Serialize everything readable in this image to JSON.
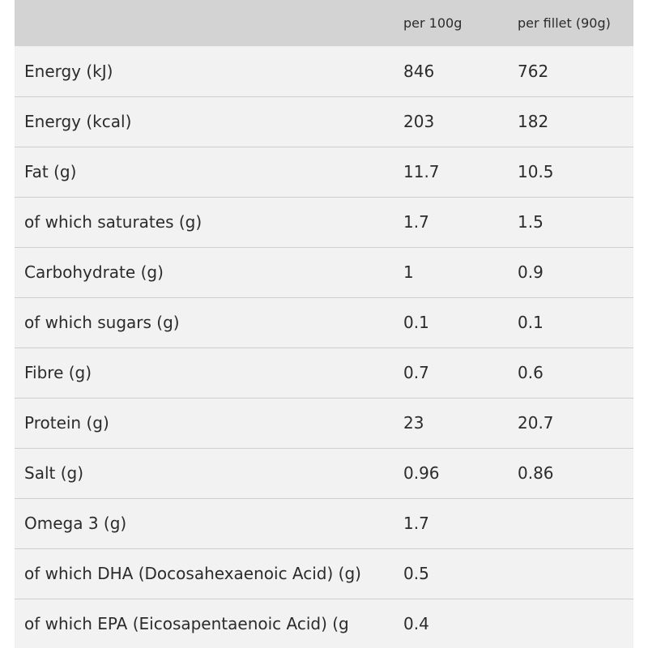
{
  "table": {
    "headers": {
      "nutrient": "",
      "per_100g": "per 100g",
      "per_fillet": "per fillet (90g)"
    },
    "rows": [
      {
        "name": "Energy (kJ)",
        "per_100g": "846",
        "per_fillet": "762"
      },
      {
        "name": "Energy (kcal)",
        "per_100g": "203",
        "per_fillet": "182"
      },
      {
        "name": "Fat (g)",
        "per_100g": "11.7",
        "per_fillet": "10.5"
      },
      {
        "name": "of which saturates (g)",
        "per_100g": "1.7",
        "per_fillet": "1.5"
      },
      {
        "name": "Carbohydrate (g)",
        "per_100g": "1",
        "per_fillet": "0.9"
      },
      {
        "name": "of which sugars (g)",
        "per_100g": "0.1",
        "per_fillet": "0.1"
      },
      {
        "name": "Fibre (g)",
        "per_100g": "0.7",
        "per_fillet": "0.6"
      },
      {
        "name": "Protein (g)",
        "per_100g": "23",
        "per_fillet": "20.7"
      },
      {
        "name": "Salt (g)",
        "per_100g": "0.96",
        "per_fillet": "0.86"
      },
      {
        "name": "Omega 3 (g)",
        "per_100g": "1.7",
        "per_fillet": ""
      },
      {
        "name": "of which DHA (Docosahexaenoic Acid) (g)",
        "per_100g": "0.5",
        "per_fillet": ""
      },
      {
        "name": "of which EPA (Eicosapentaenoic Acid) (g",
        "per_100g": "0.4",
        "per_fillet": ""
      }
    ]
  }
}
